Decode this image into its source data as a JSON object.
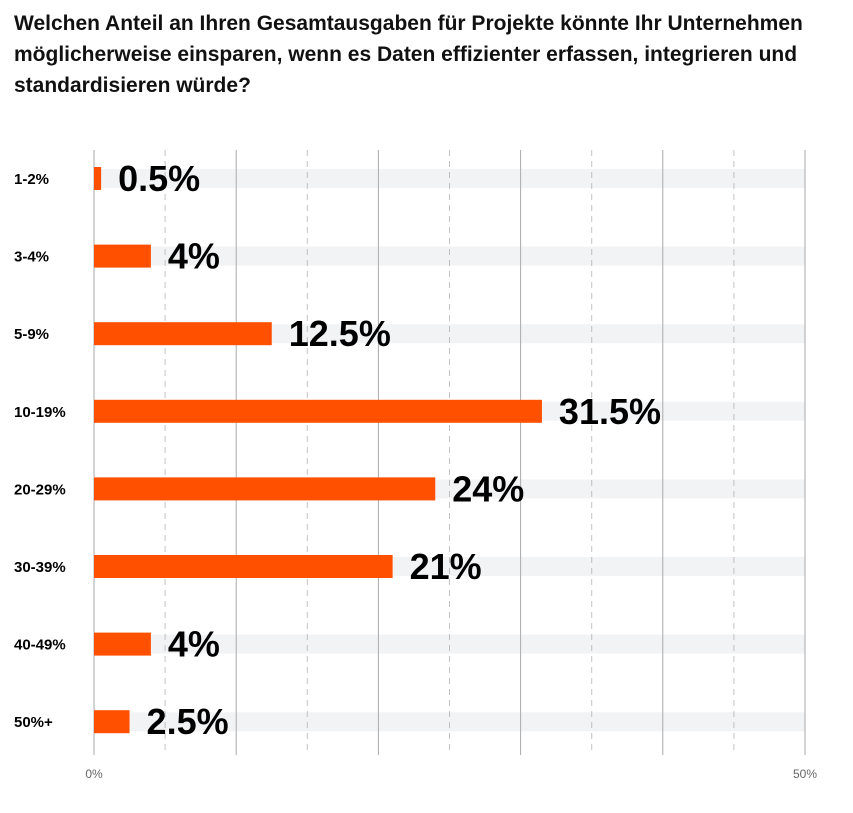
{
  "chart_data": {
    "type": "bar",
    "orientation": "horizontal",
    "title": "Welchen Anteil an Ihren Gesamtausgaben für Projekte könnte Ihr Unternehmen möglicherweise einsparen, wenn es Daten effizienter erfassen, integrieren und standardisieren würde?",
    "categories": [
      "1-2%",
      "3-4%",
      "5-9%",
      "10-19%",
      "20-29%",
      "30-39%",
      "40-49%",
      "50%+"
    ],
    "values": [
      0.5,
      4,
      12.5,
      31.5,
      24,
      21,
      4,
      2.5
    ],
    "data_labels": [
      "0.5%",
      "4%",
      "12.5%",
      "31.5%",
      "24%",
      "21%",
      "4%",
      "2.5%"
    ],
    "xlim": [
      0,
      50
    ],
    "x_tick_labels": [
      "0%",
      "50%"
    ],
    "grid": true,
    "colors": {
      "bar": "#ff5000",
      "track": "#f2f3f5",
      "grid": "#aaaaaa",
      "text": "#000000",
      "axis_text": "#666666"
    }
  }
}
